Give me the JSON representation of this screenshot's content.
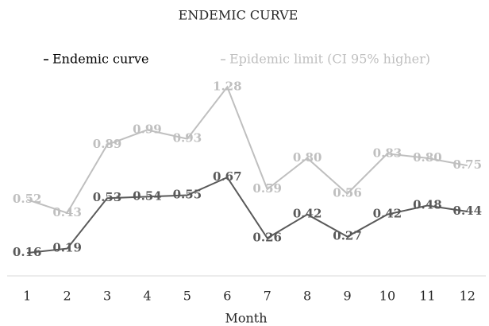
{
  "chart_data": {
    "type": "line",
    "title": "ENDEMIC CURVE",
    "x_label": "Month",
    "categories": [
      "1",
      "2",
      "3",
      "4",
      "5",
      "6",
      "7",
      "8",
      "9",
      "10",
      "11",
      "12"
    ],
    "series": [
      {
        "name": "Endemic curve",
        "color": "#595959",
        "values": [
          0.16,
          0.19,
          0.53,
          0.54,
          0.55,
          0.67,
          0.26,
          0.42,
          0.27,
          0.42,
          0.48,
          0.44
        ],
        "value_labels": [
          "0.16",
          "0.19",
          "0.53",
          "0.54",
          "0.55",
          "0.67",
          "0.26",
          "0.42",
          "0.27",
          "0.42",
          "0.48",
          "0.44"
        ]
      },
      {
        "name": "Epidemic limit (CI 95% higher)",
        "color": "#bfbfbf",
        "values": [
          0.52,
          0.43,
          0.89,
          0.99,
          0.93,
          1.28,
          0.59,
          0.8,
          0.56,
          0.83,
          0.8,
          0.75
        ],
        "value_labels": [
          "0.52",
          "0.43",
          "0.89",
          "0.99",
          "0.93",
          "1.28",
          "0.59",
          "0.80",
          "0.56",
          "0.83",
          "0.80",
          "0.75"
        ]
      }
    ],
    "ylim": [
      0,
      1.4
    ]
  }
}
